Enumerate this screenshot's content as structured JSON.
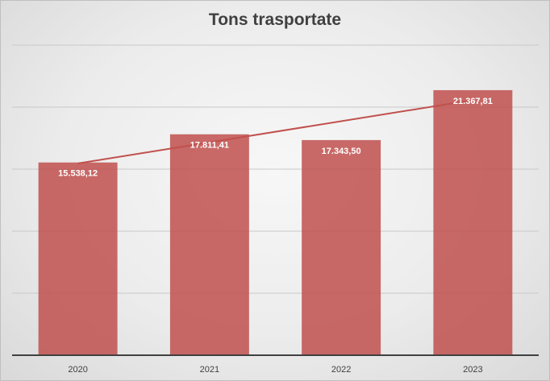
{
  "chart_data": {
    "type": "bar",
    "title": "Tons trasportate",
    "categories": [
      "2020",
      "2021",
      "2022",
      "2023"
    ],
    "values": [
      15538.12,
      17811.41,
      17343.5,
      21367.81
    ],
    "data_labels": [
      "15.538,12",
      "17.811,41",
      "17.343,50",
      "21.367,81"
    ],
    "ylim": [
      0,
      25000
    ],
    "grid": true,
    "trendline": {
      "type": "linear",
      "color": "#c0504d"
    },
    "bar_color": "#c0504d",
    "xlabel": "",
    "ylabel": ""
  }
}
